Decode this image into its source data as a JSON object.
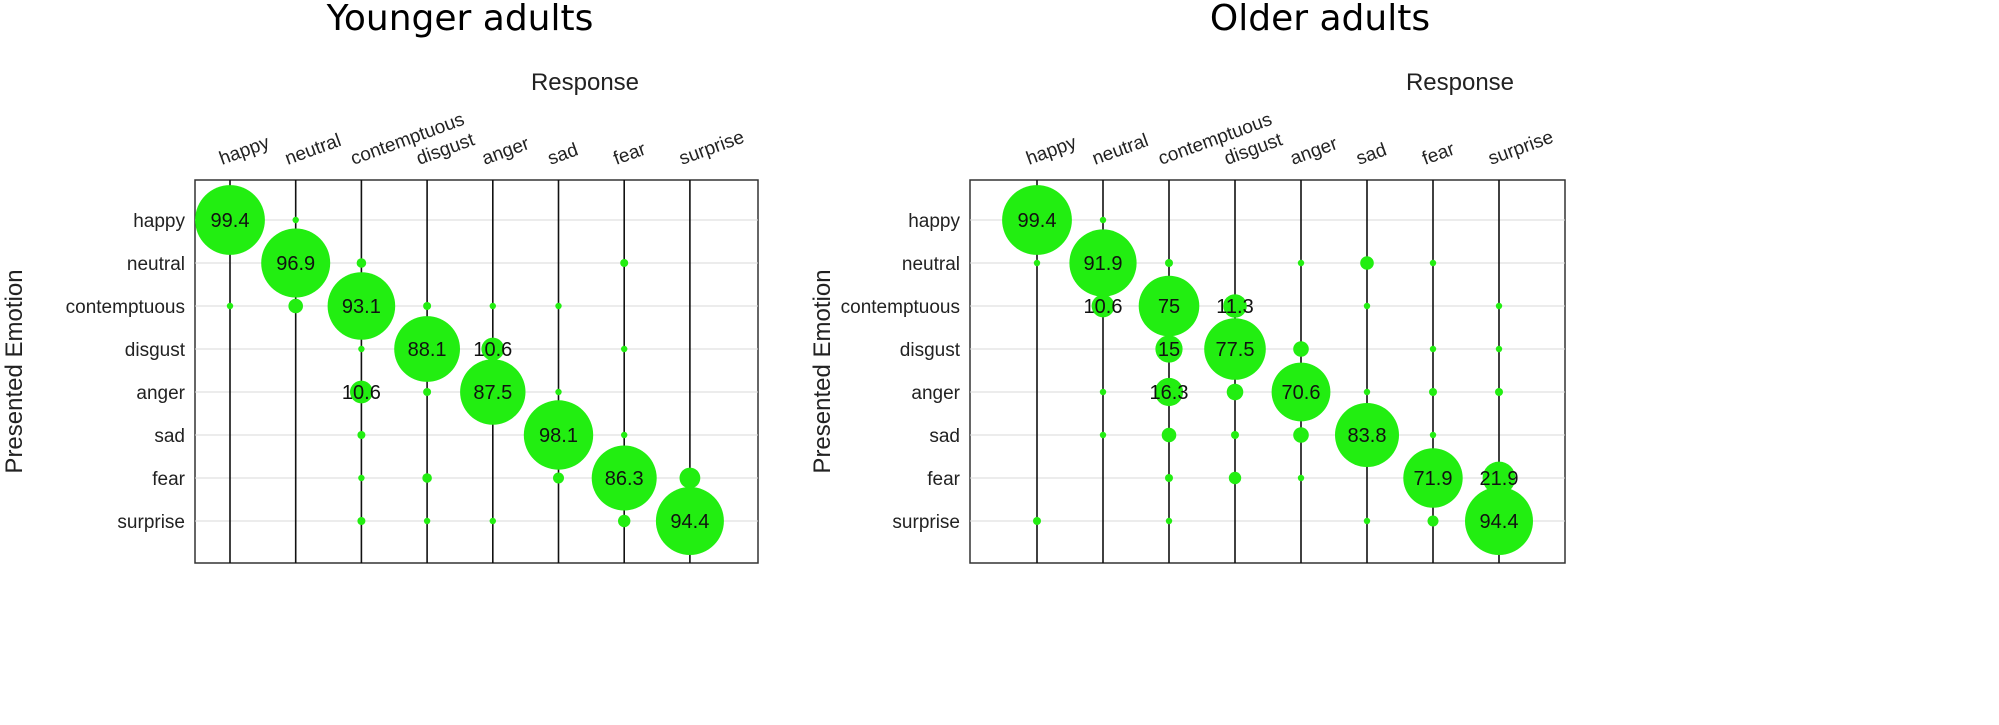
{
  "colors": {
    "bubble": "#22ee11",
    "vline": "#111111",
    "hline": "#d9d9d9",
    "frame": "#333333"
  },
  "chart_data": [
    {
      "type": "bubble-matrix",
      "title": "Younger adults",
      "xlabel": "Response",
      "ylabel": "Presented Emotion",
      "categories": [
        "happy",
        "neutral",
        "contemptuous",
        "disgust",
        "anger",
        "sad",
        "fear",
        "surprise"
      ],
      "matrix": [
        [
          99.4,
          0.6,
          0,
          0,
          0,
          0,
          0,
          0
        ],
        [
          0,
          96.9,
          1.9,
          0,
          0,
          0,
          1.3,
          0
        ],
        [
          0.6,
          4.4,
          93.1,
          1.3,
          0.6,
          0.6,
          0,
          0
        ],
        [
          0,
          0,
          0.6,
          88.1,
          10.6,
          0,
          0.6,
          0
        ],
        [
          0,
          0,
          10.6,
          1.3,
          87.5,
          0.6,
          0,
          0
        ],
        [
          0,
          0,
          1.3,
          0,
          0,
          98.1,
          0.6,
          0
        ],
        [
          0,
          0,
          0.6,
          1.9,
          0,
          2.5,
          86.3,
          8.8
        ],
        [
          0,
          0,
          1.3,
          0.6,
          0.6,
          0,
          3.1,
          94.4
        ]
      ],
      "labels": [
        {
          "row": 0,
          "col": 0,
          "text": "99.4"
        },
        {
          "row": 1,
          "col": 1,
          "text": "96.9"
        },
        {
          "row": 2,
          "col": 2,
          "text": "93.1"
        },
        {
          "row": 3,
          "col": 3,
          "text": "88.1"
        },
        {
          "row": 3,
          "col": 4,
          "text": "10.6"
        },
        {
          "row": 4,
          "col": 2,
          "text": "10.6"
        },
        {
          "row": 4,
          "col": 4,
          "text": "87.5"
        },
        {
          "row": 5,
          "col": 5,
          "text": "98.1"
        },
        {
          "row": 6,
          "col": 6,
          "text": "86.3"
        },
        {
          "row": 7,
          "col": 7,
          "text": "94.4"
        }
      ]
    },
    {
      "type": "bubble-matrix",
      "title": "Older adults",
      "xlabel": "Response",
      "ylabel": "Presented Emotion",
      "categories": [
        "happy",
        "neutral",
        "contemptuous",
        "disgust",
        "anger",
        "sad",
        "fear",
        "surprise"
      ],
      "matrix": [
        [
          99.4,
          0.6,
          0,
          0,
          0,
          0,
          0,
          0
        ],
        [
          0.6,
          91.9,
          1.3,
          0,
          0.6,
          3.8,
          0.6,
          0
        ],
        [
          0,
          10.6,
          75,
          11.3,
          0,
          0.6,
          0,
          0.6
        ],
        [
          0,
          0,
          15,
          77.5,
          5,
          0,
          0.6,
          0.6
        ],
        [
          0,
          0.6,
          16.3,
          5.6,
          70.6,
          0.6,
          1.3,
          1.3
        ],
        [
          0,
          0.6,
          4.4,
          1.3,
          5,
          83.8,
          0.6,
          0
        ],
        [
          0,
          0,
          1.3,
          3.1,
          0.6,
          0,
          71.9,
          21.9
        ],
        [
          1.3,
          0,
          0.6,
          0,
          0,
          0.6,
          2.5,
          94.4
        ]
      ],
      "labels": [
        {
          "row": 0,
          "col": 0,
          "text": "99.4"
        },
        {
          "row": 1,
          "col": 1,
          "text": "91.9"
        },
        {
          "row": 2,
          "col": 1,
          "text": "10.6"
        },
        {
          "row": 2,
          "col": 2,
          "text": "75"
        },
        {
          "row": 2,
          "col": 3,
          "text": "11.3"
        },
        {
          "row": 3,
          "col": 2,
          "text": "15"
        },
        {
          "row": 3,
          "col": 3,
          "text": "77.5"
        },
        {
          "row": 4,
          "col": 2,
          "text": "16.3"
        },
        {
          "row": 4,
          "col": 4,
          "text": "70.6"
        },
        {
          "row": 5,
          "col": 5,
          "text": "83.8"
        },
        {
          "row": 6,
          "col": 6,
          "text": "71.9"
        },
        {
          "row": 6,
          "col": 7,
          "text": "21.9"
        },
        {
          "row": 7,
          "col": 7,
          "text": "94.4"
        }
      ]
    }
  ]
}
